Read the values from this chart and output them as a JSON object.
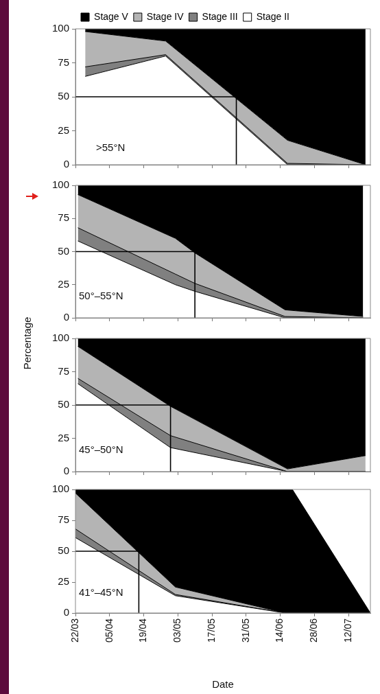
{
  "chart_data": [
    {
      "type": "area",
      "stacked": true,
      "legend": "top",
      "tick_labels": "y",
      "grid": false,
      "xlim": [
        "--03-22",
        "--07-21"
      ],
      "xticks": [
        "--03-22",
        "--04-05",
        "--04-19",
        "--05-03",
        "--05-17",
        "--05-31",
        "--06-14",
        "--06-28",
        "--07-12"
      ],
      "ylim": [
        0,
        100
      ],
      "yticks": [
        0,
        25,
        50,
        75,
        100
      ],
      "annotations": [
        ">55°N"
      ],
      "x": [
        "--03-26",
        "--04-28",
        "--06-17",
        "--07-19"
      ],
      "series": [
        {
          "name": "Stage II",
          "color": "#ffffff",
          "values": [
            65,
            80,
            0,
            0
          ]
        },
        {
          "name": "Stage III",
          "color": "#808080",
          "values": [
            7,
            1,
            1,
            0
          ]
        },
        {
          "name": "Stage IV",
          "color": "#b4b4b4",
          "values": [
            26,
            10,
            17,
            0
          ]
        },
        {
          "name": "Stage V",
          "color": "#000000",
          "values": [
            2,
            9,
            82,
            100
          ]
        }
      ],
      "ref_lines": [
        {
          "axis": "y",
          "value": 50,
          "color": "#000000"
        },
        {
          "axis": "x",
          "value": "--05-27",
          "color": "#000000"
        }
      ]
    },
    {
      "type": "area",
      "stacked": true,
      "tick_labels": "y",
      "grid": false,
      "xlim": [
        "--03-22",
        "--07-21"
      ],
      "xticks": [
        "--03-22",
        "--04-05",
        "--04-19",
        "--05-03",
        "--05-17",
        "--05-31",
        "--06-14",
        "--06-28",
        "--07-12"
      ],
      "ylim": [
        0,
        100
      ],
      "yticks": [
        0,
        25,
        50,
        75,
        100
      ],
      "annotations": [
        "50°–55°N"
      ],
      "x": [
        "--03-23",
        "--05-02",
        "--05-10",
        "--06-16",
        "--07-18"
      ],
      "series": [
        {
          "color": "#ffffff",
          "values": [
            58,
            25,
            20,
            0,
            0
          ]
        },
        {
          "color": "#808080",
          "values": [
            10,
            8,
            6,
            1,
            0
          ]
        },
        {
          "color": "#b4b4b4",
          "values": [
            25,
            27,
            23,
            5,
            1
          ]
        },
        {
          "color": "#000000",
          "values": [
            7,
            40,
            51,
            94,
            99
          ]
        }
      ],
      "ref_lines": [
        {
          "axis": "y",
          "value": 50,
          "color": "#000000"
        },
        {
          "axis": "x",
          "value": "--05-10",
          "color": "#000000"
        }
      ]
    },
    {
      "type": "area",
      "stacked": true,
      "tick_labels": "y",
      "grid": false,
      "ylabel": "Percentage",
      "xlim": [
        "--03-22",
        "--07-21"
      ],
      "xticks": [
        "--03-22",
        "--04-05",
        "--04-19",
        "--05-03",
        "--05-17",
        "--05-31",
        "--06-14",
        "--06-28",
        "--07-12"
      ],
      "ylim": [
        0,
        100
      ],
      "yticks": [
        0,
        25,
        50,
        75,
        100
      ],
      "annotations": [
        "45°–50°N"
      ],
      "x": [
        "--03-23",
        "--04-30",
        "--06-17",
        "--07-19"
      ],
      "series": [
        {
          "color": "#ffffff",
          "values": [
            66,
            18,
            0,
            0
          ]
        },
        {
          "color": "#808080",
          "values": [
            4,
            9,
            0,
            0
          ]
        },
        {
          "color": "#b4b4b4",
          "values": [
            24,
            22,
            2,
            12
          ]
        },
        {
          "color": "#000000",
          "values": [
            6,
            51,
            98,
            88
          ]
        }
      ],
      "ref_lines": [
        {
          "axis": "y",
          "value": 50,
          "color": "#000000"
        },
        {
          "axis": "x",
          "value": "--04-30",
          "color": "#000000"
        }
      ]
    },
    {
      "type": "area",
      "stacked": true,
      "grid": false,
      "xlabel": "Date",
      "xlim": [
        "--03-22",
        "--07-21"
      ],
      "xticks": [
        {
          "value": "--03-22",
          "label": "22/03"
        },
        {
          "value": "--04-05",
          "label": "05/04"
        },
        {
          "value": "--04-19",
          "label": "19/04"
        },
        {
          "value": "--05-03",
          "label": "03/05"
        },
        {
          "value": "--05-17",
          "label": "17/05"
        },
        {
          "value": "--05-31",
          "label": "31/05"
        },
        {
          "value": "--06-14",
          "label": "14/06"
        },
        {
          "value": "--06-28",
          "label": "28/06"
        },
        {
          "value": "--07-12",
          "label": "12/07"
        }
      ],
      "ylim": [
        0,
        100
      ],
      "yticks": [
        0,
        25,
        50,
        75,
        100
      ],
      "annotations": [
        "41°–45°N"
      ],
      "x": [
        "--03-22",
        "--05-02",
        "--06-16",
        "--06-19",
        "--07-21"
      ],
      "series": [
        {
          "color": "#ffffff",
          "values": [
            61,
            14,
            0,
            0,
            0
          ]
        },
        {
          "color": "#808080",
          "values": [
            7,
            1,
            0,
            0,
            0
          ]
        },
        {
          "color": "#b4b4b4",
          "values": [
            29,
            6,
            0,
            0,
            0
          ]
        },
        {
          "color": "#000000",
          "values": [
            3,
            79,
            100,
            100,
            0
          ]
        }
      ],
      "ref_lines": [
        {
          "axis": "y",
          "value": 50,
          "color": "#000000"
        },
        {
          "axis": "x",
          "value": "--04-17",
          "color": "#000000"
        }
      ]
    }
  ]
}
